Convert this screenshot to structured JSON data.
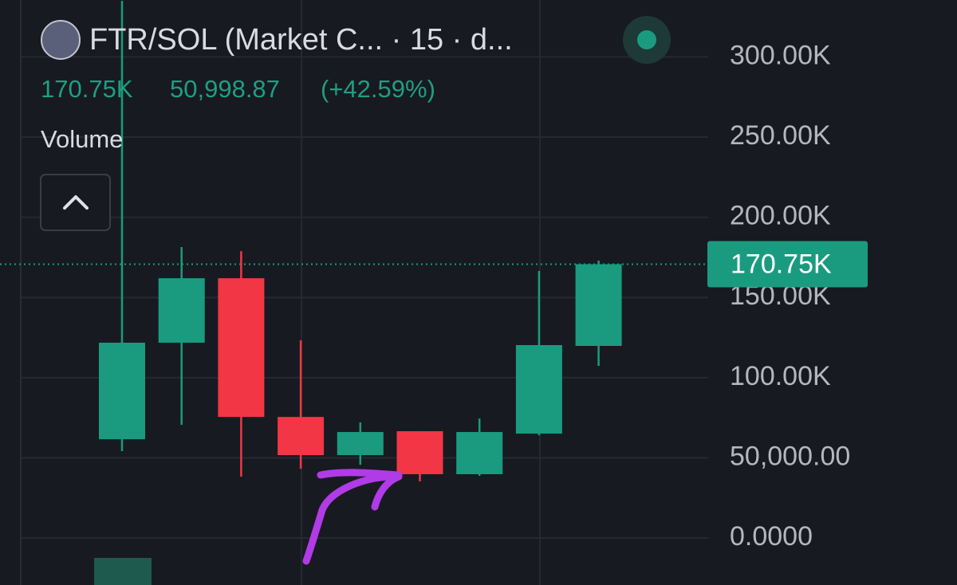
{
  "chart_data": {
    "type": "candlestick",
    "title": "FTR/SOL (Market C...   · 15 · d...",
    "legend_values": [
      "170.75K",
      "50,998.87",
      "(+42.59%)"
    ],
    "indicator": "Volume",
    "categories": [
      null,
      null,
      null,
      null,
      null,
      null,
      null,
      null,
      null
    ],
    "open": [
      61600,
      121800,
      162000,
      75500,
      51700,
      66600,
      39800,
      65100,
      119800
    ],
    "high": [
      335000,
      181400,
      178900,
      123300,
      72100,
      66600,
      74500,
      166500,
      173000
    ],
    "low": [
      54200,
      70600,
      38300,
      43200,
      45700,
      35300,
      38800,
      64100,
      107400
    ],
    "close": [
      121800,
      162000,
      75500,
      51700,
      66100,
      39800,
      66100,
      120300,
      170750
    ],
    "up_color": "#1a9b7f",
    "down_color": "#f23645",
    "last_price": {
      "value": 170750,
      "label": "170.75K"
    },
    "ylim": [
      -29300,
      335500
    ],
    "yticks": [
      {
        "value": 0,
        "label": "0.0000"
      },
      {
        "value": 50000,
        "label": "50,000.00"
      },
      {
        "value": 100000,
        "label": "100.00K"
      },
      {
        "value": 150000,
        "label": "150.00K"
      },
      {
        "value": 200000,
        "label": "200.00K"
      },
      {
        "value": 250000,
        "label": "250.00K"
      },
      {
        "value": 300000,
        "label": "300.00K"
      }
    ],
    "grid": true
  }
}
